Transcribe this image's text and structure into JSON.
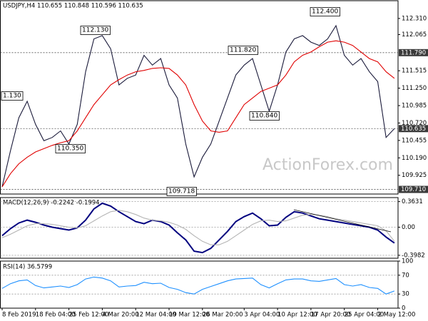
{
  "chart_data": [
    {
      "type": "line",
      "title": "USDJPY,H4 110.655 110.848 110.596 110.635",
      "watermark": "ActionForex.com",
      "ylim": [
        109.64,
        112.58
      ],
      "yticks": [
        {
          "value": 112.31,
          "label": "112.310"
        },
        {
          "value": 112.065,
          "label": "112.065"
        },
        {
          "value": 111.515,
          "label": "111.515"
        },
        {
          "value": 111.25,
          "label": "111.250"
        },
        {
          "value": 110.985,
          "label": "110.985"
        },
        {
          "value": 110.72,
          "label": "110.720"
        },
        {
          "value": 110.455,
          "label": "110.455"
        },
        {
          "value": 110.19,
          "label": "110.190"
        },
        {
          "value": 109.925,
          "label": "109.925"
        }
      ],
      "levels": [
        {
          "value": 111.79,
          "label": "111.790"
        },
        {
          "value": 110.635,
          "label": "110.635"
        },
        {
          "value": 109.71,
          "label": "109.710"
        }
      ],
      "annotations": [
        "1.130",
        "112.130",
        "110.350",
        "109.718",
        "111.820",
        "110.840",
        "112.400"
      ],
      "grid": false,
      "series": [
        {
          "color": "#1a1a3a",
          "values": [
            109.75,
            110.3,
            110.8,
            111.05,
            110.7,
            110.45,
            110.5,
            110.6,
            110.4,
            110.7,
            111.5,
            112.0,
            112.05,
            111.85,
            111.3,
            111.4,
            111.45,
            111.75,
            111.6,
            111.7,
            111.3,
            111.1,
            110.4,
            109.9,
            110.2,
            110.4,
            110.75,
            111.1,
            111.45,
            111.6,
            111.7,
            111.3,
            110.9,
            111.3,
            111.8,
            112.0,
            112.05,
            111.95,
            111.9,
            112.0,
            112.2,
            111.75,
            111.6,
            111.7,
            111.5,
            111.35,
            110.5,
            110.635
          ]
        },
        {
          "color": "#e00000",
          "values": [
            109.75,
            109.95,
            110.1,
            110.2,
            110.28,
            110.33,
            110.38,
            110.42,
            110.45,
            110.6,
            110.8,
            111.0,
            111.15,
            111.3,
            111.38,
            111.45,
            111.5,
            111.52,
            111.55,
            111.56,
            111.55,
            111.45,
            111.3,
            111.0,
            110.75,
            110.6,
            110.58,
            110.6,
            110.8,
            111.0,
            111.1,
            111.2,
            111.25,
            111.3,
            111.45,
            111.65,
            111.75,
            111.8,
            111.88,
            111.95,
            111.97,
            111.95,
            111.9,
            111.8,
            111.7,
            111.65,
            111.5,
            111.4
          ]
        }
      ]
    },
    {
      "type": "line",
      "title": "MACD(12,26,9) -0.2242 -0.1994",
      "ylim": [
        -0.44,
        0.42
      ],
      "yticks": [
        0.3631,
        {
          "value": 0,
          "label": "0.00"
        },
        -0.3982
      ],
      "grid": true,
      "series": [
        {
          "color": "#00007f",
          "values": [
            -0.12,
            -0.02,
            0.06,
            0.1,
            0.07,
            0.03,
            0.0,
            -0.02,
            -0.04,
            -0.01,
            0.1,
            0.26,
            0.34,
            0.3,
            0.22,
            0.15,
            0.08,
            0.05,
            0.1,
            0.08,
            0.03,
            -0.08,
            -0.18,
            -0.34,
            -0.36,
            -0.3,
            -0.18,
            -0.06,
            0.08,
            0.15,
            0.2,
            0.12,
            0.02,
            0.03,
            0.14,
            0.22,
            0.2,
            0.16,
            0.12,
            0.1,
            0.08,
            0.06,
            0.04,
            0.02,
            0.0,
            -0.04,
            -0.14,
            -0.2242
          ]
        },
        {
          "color": "#b4b4b4",
          "values": [
            -0.15,
            -0.1,
            -0.04,
            0.02,
            0.05,
            0.05,
            0.04,
            0.02,
            0.0,
            -0.01,
            0.02,
            0.09,
            0.16,
            0.22,
            0.24,
            0.22,
            0.18,
            0.13,
            0.1,
            0.09,
            0.07,
            0.03,
            -0.03,
            -0.12,
            -0.2,
            -0.25,
            -0.25,
            -0.2,
            -0.12,
            -0.04,
            0.04,
            0.09,
            0.1,
            0.08,
            0.09,
            0.13,
            0.17,
            0.18,
            0.17,
            0.15,
            0.12,
            0.1,
            0.08,
            0.06,
            0.04,
            0.02,
            -0.05,
            -0.1994
          ]
        }
      ]
    },
    {
      "type": "line",
      "title": "RSI(14) 36.5799",
      "ylim": [
        0,
        100
      ],
      "yticks": [
        100,
        70,
        30,
        0
      ],
      "grid": true,
      "categories": [
        "8 Feb 2019",
        null,
        null,
        null,
        "18 Feb 04:00",
        null,
        null,
        null,
        "25 Feb 12:00",
        null,
        null,
        null,
        "4 Mar 20:00",
        null,
        null,
        null,
        "12 Mar 04:00",
        null,
        null,
        null,
        "19 Mar 12:00",
        null,
        null,
        null,
        "26 Mar 20:00",
        null,
        null,
        null,
        null,
        "3 Apr 04:00",
        null,
        null,
        null,
        "10 Apr 12:00",
        null,
        null,
        null,
        "17 Apr 20:00",
        null,
        null,
        null,
        "25 Apr 04:00",
        null,
        null,
        null,
        "2 May 12:00",
        null,
        null
      ],
      "series": [
        {
          "color": "#1e90ff",
          "values": [
            42,
            52,
            58,
            60,
            48,
            43,
            45,
            47,
            44,
            50,
            62,
            66,
            64,
            58,
            45,
            47,
            48,
            55,
            52,
            53,
            44,
            40,
            33,
            30,
            40,
            46,
            52,
            58,
            62,
            63,
            64,
            50,
            43,
            52,
            60,
            62,
            62,
            58,
            57,
            60,
            63,
            50,
            47,
            50,
            44,
            42,
            30,
            36.5799
          ]
        }
      ]
    }
  ]
}
